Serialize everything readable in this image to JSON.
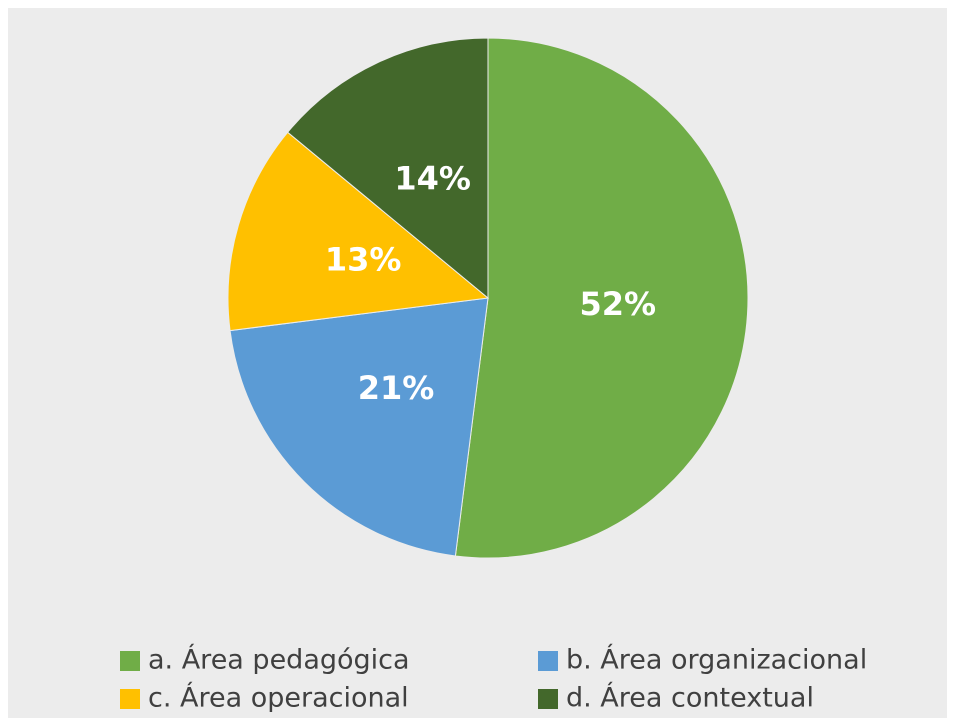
{
  "chart_data": {
    "type": "pie",
    "categories": [
      "a. Área pedagógica",
      "b. Área organizacional",
      "c. Área operacional",
      "d. Área contextual"
    ],
    "values": [
      52,
      21,
      13,
      14
    ],
    "value_labels": [
      "52%",
      "21%",
      "13%",
      "14%"
    ],
    "colors": [
      "#70ad47",
      "#5b9bd5",
      "#ffc000",
      "#43682b"
    ],
    "legend": "bottom"
  }
}
